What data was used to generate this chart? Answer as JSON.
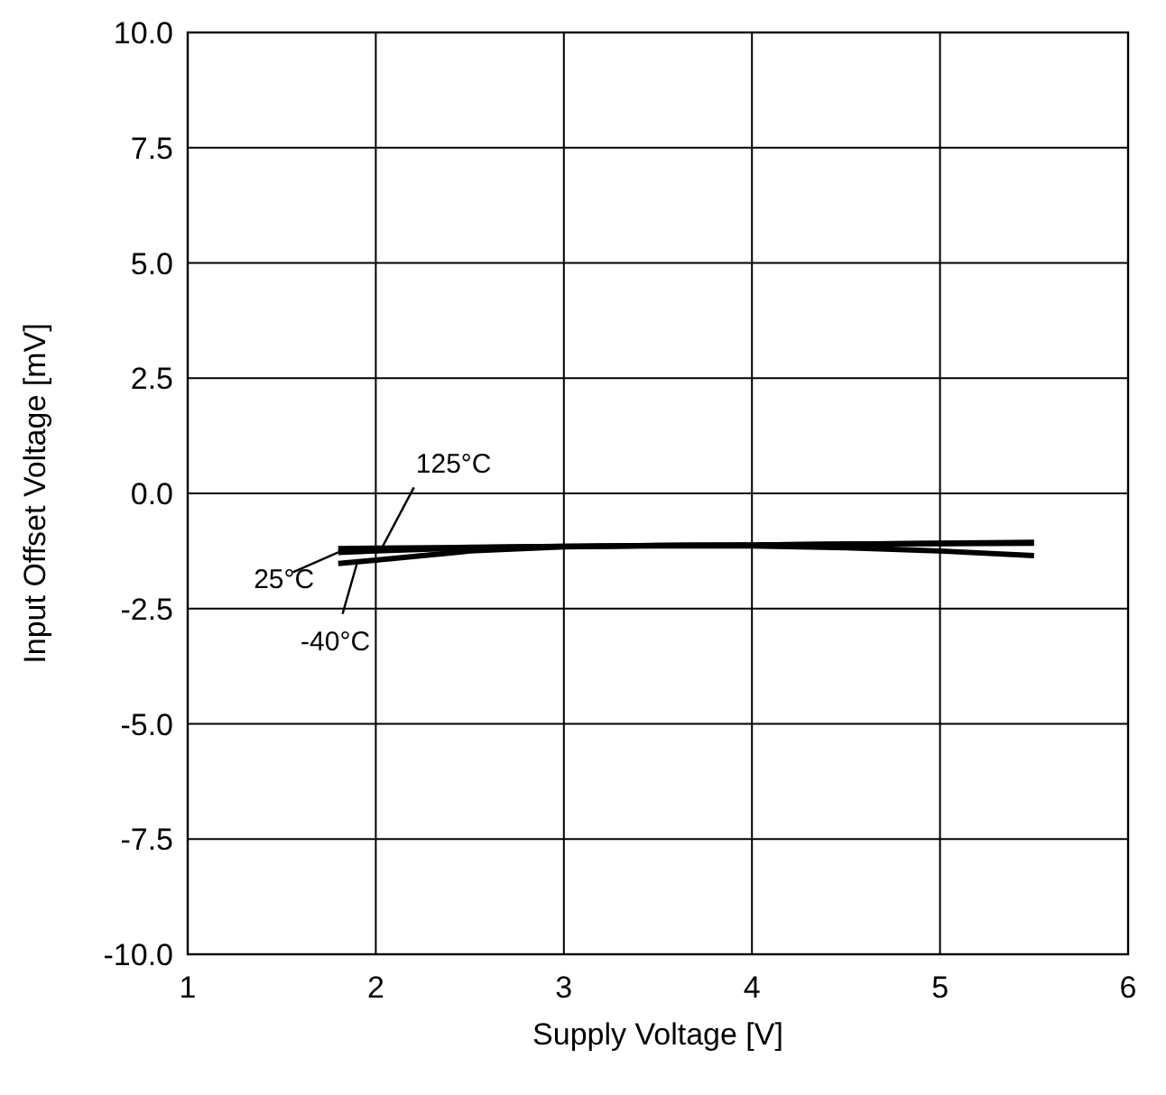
{
  "chart_data": {
    "type": "line",
    "xlabel": "Supply Voltage [V]",
    "ylabel": "Input Offset Voltage [mV]",
    "x": [
      1.8,
      2,
      2.5,
      3,
      3.5,
      4,
      4.5,
      5,
      5.5
    ],
    "series": [
      {
        "name": "125°C",
        "color": "#000000",
        "values": [
          -1.2,
          -1.19,
          -1.17,
          -1.15,
          -1.14,
          -1.14,
          -1.18,
          -1.25,
          -1.35
        ]
      },
      {
        "name": "25°C",
        "color": "#000000",
        "values": [
          -1.28,
          -1.25,
          -1.18,
          -1.15,
          -1.13,
          -1.12,
          -1.1,
          -1.09,
          -1.08
        ]
      },
      {
        "name": "-40°C",
        "color": "#000000",
        "values": [
          -1.52,
          -1.45,
          -1.25,
          -1.16,
          -1.13,
          -1.12,
          -1.1,
          -1.08,
          -1.06
        ]
      }
    ],
    "xlim": [
      1,
      6
    ],
    "xticks": [
      1,
      2,
      3,
      4,
      5,
      6
    ],
    "ylim": [
      -10,
      10
    ],
    "yticks": [
      {
        "value": -10,
        "label": "-10.0"
      },
      {
        "value": -7.5,
        "label": "-7.5"
      },
      {
        "value": -5,
        "label": "-5.0"
      },
      {
        "value": -2.5,
        "label": "-2.5"
      },
      {
        "value": 0,
        "label": "0.0"
      },
      {
        "value": 2.5,
        "label": "2.5"
      },
      {
        "value": 5,
        "label": "5.0"
      },
      {
        "value": 7.5,
        "label": "7.5"
      },
      {
        "value": 10,
        "label": "10.0"
      }
    ],
    "grid": true,
    "legend": "left",
    "line_style": "solid",
    "marker": "none"
  }
}
